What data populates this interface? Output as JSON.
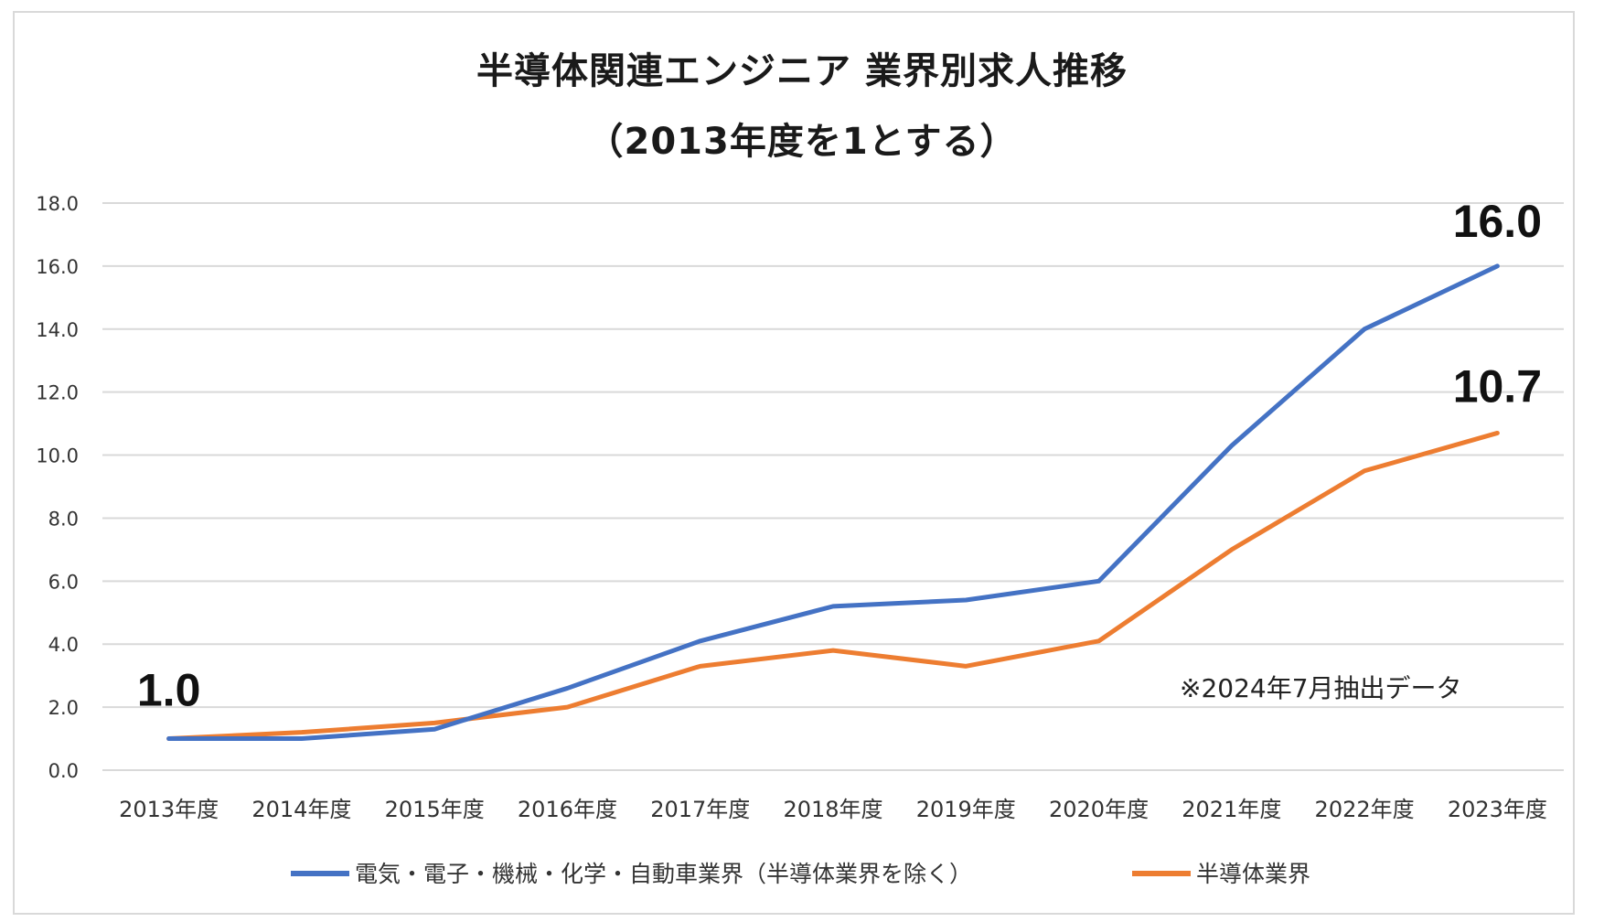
{
  "chart_data": {
    "type": "line",
    "title": "半導体関連エンジニア 業界別求人推移",
    "subtitle": "（2013年度を1とする）",
    "categories": [
      "2013年度",
      "2014年度",
      "2015年度",
      "2016年度",
      "2017年度",
      "2018年度",
      "2019年度",
      "2020年度",
      "2021年度",
      "2022年度",
      "2023年度"
    ],
    "series": [
      {
        "name": "電気・電子・機械・化学・自動車業界（半導体業界を除く）",
        "color": "#4472c4",
        "values": [
          1.0,
          1.0,
          1.3,
          2.6,
          4.1,
          5.2,
          5.4,
          6.0,
          10.3,
          14.0,
          16.0
        ]
      },
      {
        "name": "半導体業界",
        "color": "#ed7d31",
        "values": [
          1.0,
          1.2,
          1.5,
          2.0,
          3.3,
          3.8,
          3.3,
          4.1,
          7.0,
          9.5,
          10.7
        ]
      }
    ],
    "ylim": [
      0,
      18
    ],
    "yticks": [
      "0.0",
      "2.0",
      "4.0",
      "6.0",
      "8.0",
      "10.0",
      "12.0",
      "14.0",
      "16.0",
      "18.0"
    ],
    "annotations": {
      "start_label": "1.0",
      "end_label_series1": "16.0",
      "end_label_series2": "10.7",
      "note": "※2024年7月抽出データ"
    },
    "legend": "bottom",
    "grid": true
  }
}
